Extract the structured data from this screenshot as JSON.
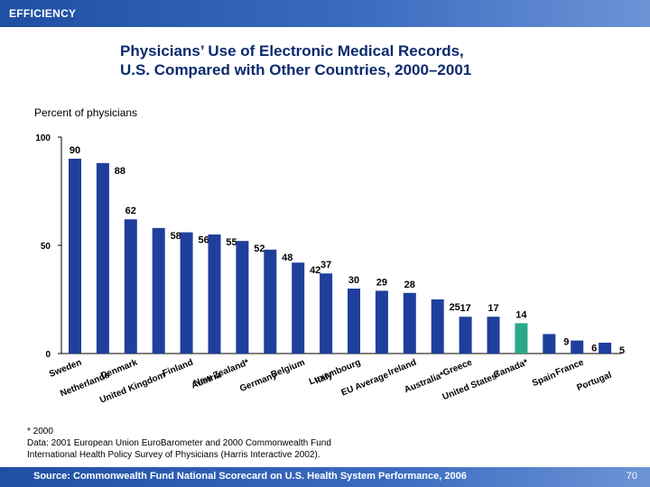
{
  "header": {
    "section_label": "EFFICIENCY"
  },
  "title_lines": [
    "Physicians’ Use of Electronic Medical Records,",
    "U.S. Compared with Other Countries, 2000–2001"
  ],
  "chart_data": {
    "type": "bar",
    "ylabel": "Percent of physicians",
    "ylim": [
      0,
      100
    ],
    "yticks": [
      0,
      50,
      100
    ],
    "grid": false,
    "categories": [
      "Sweden",
      "Netherlands",
      "Denmark",
      "United Kingdom",
      "Finland",
      "Austria",
      "New Zealand*",
      "Germany",
      "Belgium",
      "Italy",
      "Luxembourg",
      "EU Average",
      "Ireland",
      "Australia*",
      "Greece",
      "United States*",
      "Canada*",
      "Spain",
      "France",
      "Portugal"
    ],
    "values": [
      90,
      88,
      62,
      58,
      56,
      55,
      52,
      48,
      42,
      37,
      30,
      29,
      28,
      25,
      17,
      17,
      14,
      9,
      6,
      5
    ],
    "highlight_category": "Canada*",
    "colors": {
      "bar": "#1f3f9c",
      "highlight": "#2aa88a"
    }
  },
  "footnote": {
    "lines": [
      "* 2000",
      "Data: 2001 European Union EuroBarometer and 2000 Commonwealth Fund",
      "International Health Policy Survey of Physicians (Harris Interactive 2002)."
    ]
  },
  "footer": {
    "source": "Source: Commonwealth Fund National Scorecard on U.S. Health System Performance, 2006",
    "page_number": "70"
  }
}
